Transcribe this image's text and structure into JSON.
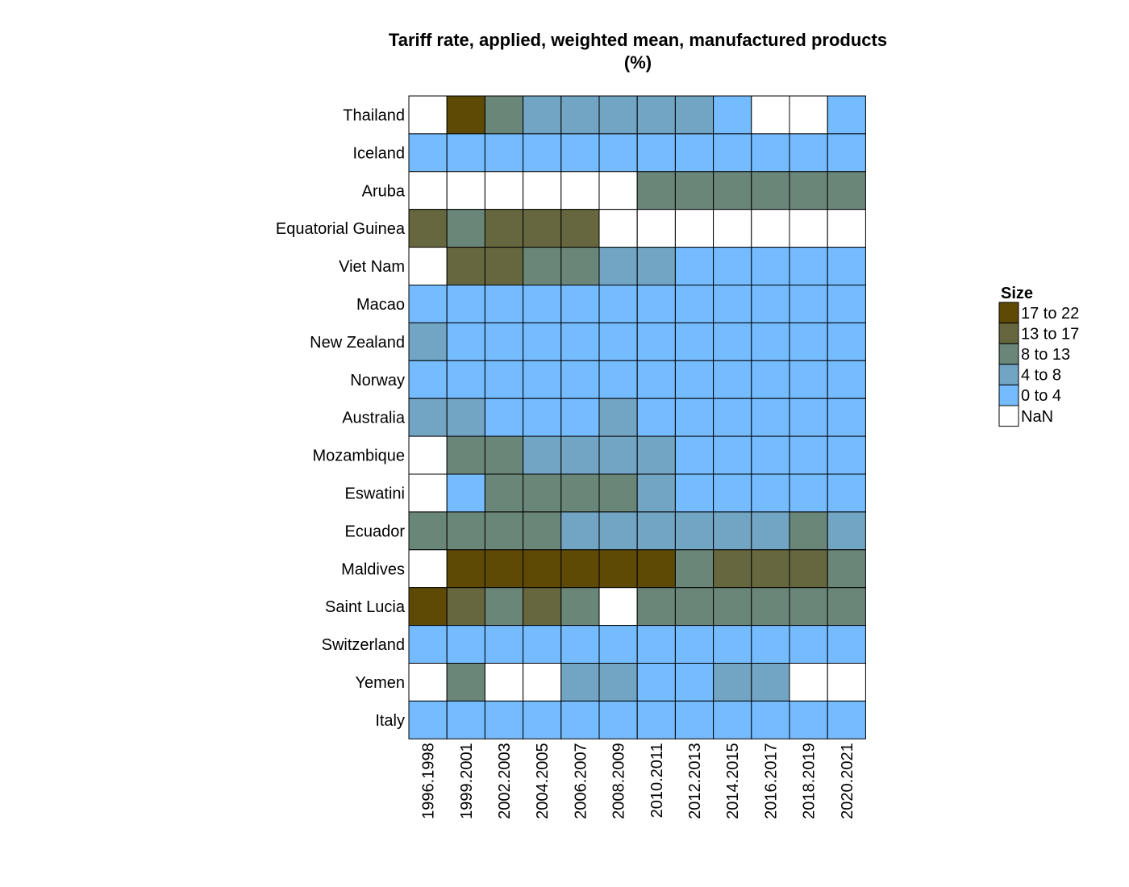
{
  "chart_data": {
    "type": "heatmap",
    "title": "Tariff rate, applied, weighted mean, manufactured products",
    "subtitle": "(%)",
    "rows": [
      "Thailand",
      "Iceland",
      "Aruba",
      "Equatorial Guinea",
      "Viet Nam",
      "Macao",
      "New Zealand",
      "Norway",
      "Australia",
      "Mozambique",
      "Eswatini",
      "Ecuador",
      "Maldives",
      "Saint Lucia",
      "Switzerland",
      "Yemen",
      "Italy"
    ],
    "columns": [
      "1996.1998",
      "1999.2001",
      "2002.2003",
      "2004.2005",
      "2006.2007",
      "2008.2009",
      "2010.2011",
      "2012.2013",
      "2014.2015",
      "2016.2017",
      "2018.2019",
      "2020.2021"
    ],
    "bins": [
      "NaN",
      "0 to 4",
      "4 to 8",
      "8 to 13",
      "13 to 17",
      "17 to 22"
    ],
    "cells": [
      [
        "NaN",
        "17 to 22",
        "8 to 13",
        "4 to 8",
        "4 to 8",
        "4 to 8",
        "4 to 8",
        "4 to 8",
        "0 to 4",
        "NaN",
        "NaN",
        "0 to 4"
      ],
      [
        "0 to 4",
        "0 to 4",
        "0 to 4",
        "0 to 4",
        "0 to 4",
        "0 to 4",
        "0 to 4",
        "0 to 4",
        "0 to 4",
        "0 to 4",
        "0 to 4",
        "0 to 4"
      ],
      [
        "NaN",
        "NaN",
        "NaN",
        "NaN",
        "NaN",
        "NaN",
        "8 to 13",
        "8 to 13",
        "8 to 13",
        "8 to 13",
        "8 to 13",
        "8 to 13"
      ],
      [
        "13 to 17",
        "8 to 13",
        "13 to 17",
        "13 to 17",
        "13 to 17",
        "NaN",
        "NaN",
        "NaN",
        "NaN",
        "NaN",
        "NaN",
        "NaN"
      ],
      [
        "NaN",
        "13 to 17",
        "13 to 17",
        "8 to 13",
        "8 to 13",
        "4 to 8",
        "4 to 8",
        "0 to 4",
        "0 to 4",
        "0 to 4",
        "0 to 4",
        "0 to 4"
      ],
      [
        "0 to 4",
        "0 to 4",
        "0 to 4",
        "0 to 4",
        "0 to 4",
        "0 to 4",
        "0 to 4",
        "0 to 4",
        "0 to 4",
        "0 to 4",
        "0 to 4",
        "0 to 4"
      ],
      [
        "4 to 8",
        "0 to 4",
        "0 to 4",
        "0 to 4",
        "0 to 4",
        "0 to 4",
        "0 to 4",
        "0 to 4",
        "0 to 4",
        "0 to 4",
        "0 to 4",
        "0 to 4"
      ],
      [
        "0 to 4",
        "0 to 4",
        "0 to 4",
        "0 to 4",
        "0 to 4",
        "0 to 4",
        "0 to 4",
        "0 to 4",
        "0 to 4",
        "0 to 4",
        "0 to 4",
        "0 to 4"
      ],
      [
        "4 to 8",
        "4 to 8",
        "0 to 4",
        "0 to 4",
        "0 to 4",
        "4 to 8",
        "0 to 4",
        "0 to 4",
        "0 to 4",
        "0 to 4",
        "0 to 4",
        "0 to 4"
      ],
      [
        "NaN",
        "8 to 13",
        "8 to 13",
        "4 to 8",
        "4 to 8",
        "4 to 8",
        "4 to 8",
        "0 to 4",
        "0 to 4",
        "0 to 4",
        "0 to 4",
        "0 to 4"
      ],
      [
        "NaN",
        "0 to 4",
        "8 to 13",
        "8 to 13",
        "8 to 13",
        "8 to 13",
        "4 to 8",
        "0 to 4",
        "0 to 4",
        "0 to 4",
        "0 to 4",
        "0 to 4"
      ],
      [
        "8 to 13",
        "8 to 13",
        "8 to 13",
        "8 to 13",
        "4 to 8",
        "4 to 8",
        "4 to 8",
        "4 to 8",
        "4 to 8",
        "4 to 8",
        "8 to 13",
        "4 to 8"
      ],
      [
        "NaN",
        "17 to 22",
        "17 to 22",
        "17 to 22",
        "17 to 22",
        "17 to 22",
        "17 to 22",
        "8 to 13",
        "13 to 17",
        "13 to 17",
        "13 to 17",
        "8 to 13"
      ],
      [
        "17 to 22",
        "13 to 17",
        "8 to 13",
        "13 to 17",
        "8 to 13",
        "NaN",
        "8 to 13",
        "8 to 13",
        "8 to 13",
        "8 to 13",
        "8 to 13",
        "8 to 13"
      ],
      [
        "0 to 4",
        "0 to 4",
        "0 to 4",
        "0 to 4",
        "0 to 4",
        "0 to 4",
        "0 to 4",
        "0 to 4",
        "0 to 4",
        "0 to 4",
        "0 to 4",
        "0 to 4"
      ],
      [
        "NaN",
        "8 to 13",
        "NaN",
        "NaN",
        "4 to 8",
        "4 to 8",
        "0 to 4",
        "0 to 4",
        "4 to 8",
        "4 to 8",
        "NaN",
        "NaN"
      ],
      [
        "0 to 4",
        "0 to 4",
        "0 to 4",
        "0 to 4",
        "0 to 4",
        "0 to 4",
        "0 to 4",
        "0 to 4",
        "0 to 4",
        "0 to 4",
        "0 to 4",
        "0 to 4"
      ]
    ],
    "colors": {
      "NaN": "#ffffff",
      "0 to 4": "#74bbff",
      "4 to 8": "#72a4c4",
      "8 to 13": "#6a8679",
      "13 to 17": "#66673f",
      "17 to 22": "#5e4a05"
    },
    "legend": {
      "title": "Size",
      "placement": "right",
      "entries": [
        "17 to 22",
        "13 to 17",
        "8 to 13",
        "4 to 8",
        "0 to 4",
        "NaN"
      ]
    },
    "grid": true
  }
}
